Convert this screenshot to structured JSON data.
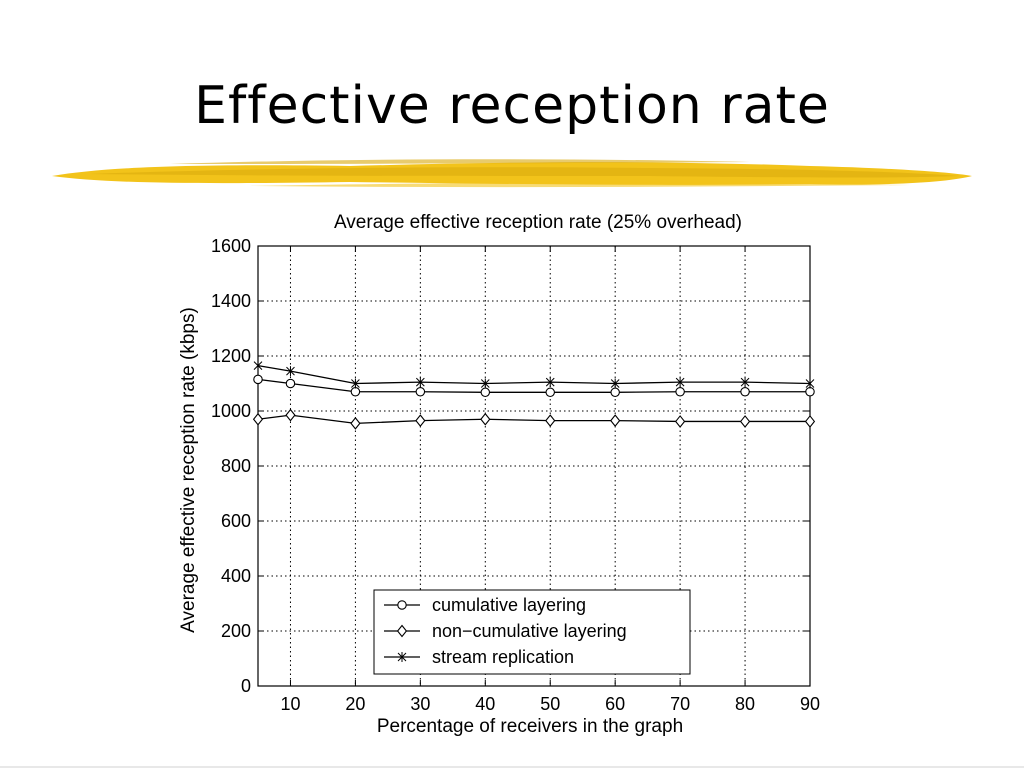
{
  "slide": {
    "title": "Effective reception rate"
  },
  "colors": {
    "highlight": "#f2c31a",
    "highlight_dark": "#d9a90c",
    "line": "#000000"
  },
  "chart_data": {
    "type": "line",
    "title": "Average effective reception rate (25% overhead)",
    "xlabel": "Percentage of receivers in the graph",
    "ylabel": "Average effective reception rate (kbps)",
    "xlim": [
      5,
      90
    ],
    "ylim": [
      0,
      1600
    ],
    "xticks": [
      10,
      20,
      30,
      40,
      50,
      60,
      70,
      80,
      90
    ],
    "yticks": [
      0,
      200,
      400,
      600,
      800,
      1000,
      1200,
      1400,
      1600
    ],
    "grid": true,
    "legend_position": "bottom-center",
    "x": [
      5,
      10,
      20,
      30,
      40,
      50,
      60,
      70,
      80,
      90
    ],
    "series": [
      {
        "name": "cumulative layering",
        "marker": "circle",
        "values": [
          1115,
          1100,
          1070,
          1070,
          1068,
          1068,
          1068,
          1070,
          1070,
          1070
        ]
      },
      {
        "name": "non−cumulative layering",
        "marker": "diamond",
        "values": [
          970,
          985,
          955,
          965,
          970,
          965,
          965,
          962,
          962,
          962
        ]
      },
      {
        "name": "stream replication",
        "marker": "star",
        "values": [
          1165,
          1145,
          1100,
          1105,
          1100,
          1105,
          1100,
          1105,
          1105,
          1100
        ]
      }
    ]
  }
}
